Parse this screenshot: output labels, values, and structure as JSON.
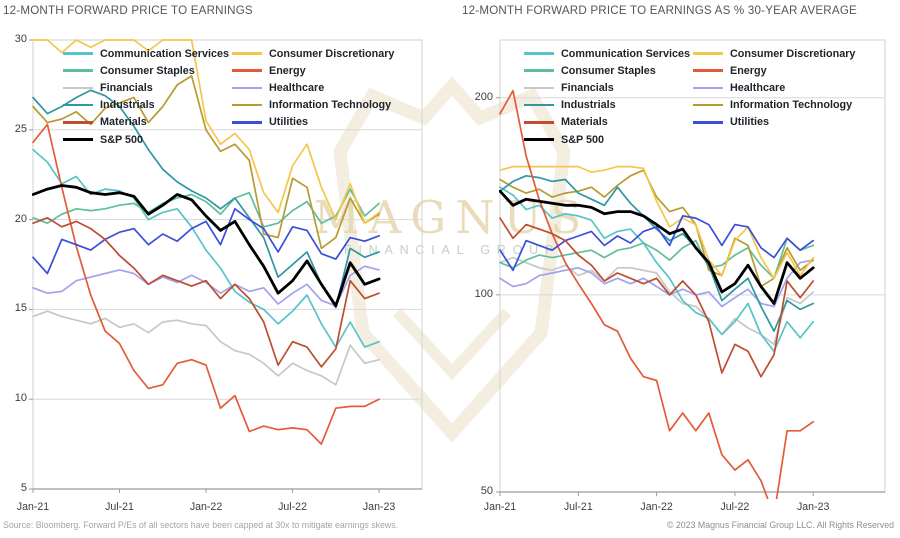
{
  "header": {
    "left_title": "12-MONTH FORWARD PRICE TO EARNINGS",
    "right_title": "12-MONTH FORWARD PRICE TO EARNINGS AS % 30-YEAR AVERAGE"
  },
  "footer": {
    "source": "Source: Bloomberg. Forward P/Es of all sectors have been capped at 30x to mitigate earnings skews.",
    "copyright": "© 2023 Magnus Financial Group LLC. All Rights Reserved"
  },
  "watermark": {
    "line1": "MAGNUS",
    "line2": "FINANCIAL GROUP",
    "shield_color": "#f4eee0",
    "text_gold": "#e5d7ae",
    "text_sage": "#c2cdbf"
  },
  "chart_data": [
    {
      "type": "line",
      "title": "12-MONTH FORWARD PRICE TO EARNINGS",
      "x_monthly_labels": [
        "Jan-21",
        "Feb-21",
        "Mar-21",
        "Apr-21",
        "May-21",
        "Jun-21",
        "Jul-21",
        "Aug-21",
        "Sep-21",
        "Oct-21",
        "Nov-21",
        "Dec-21",
        "Jan-22",
        "Feb-22",
        "Mar-22",
        "Apr-22",
        "May-22",
        "Jun-22",
        "Jul-22",
        "Aug-22",
        "Sep-22",
        "Oct-22",
        "Nov-22",
        "Dec-22",
        "Jan-23"
      ],
      "x_tick_labels": [
        "Jan-21",
        "Jul-21",
        "Jan-22",
        "Jul-22",
        "Jan-23"
      ],
      "x_tick_months": [
        0,
        6,
        12,
        18,
        24
      ],
      "y_scale": "linear",
      "ylim": [
        5,
        30
      ],
      "y_ticks": [
        "30",
        "25",
        "20",
        "15",
        "10",
        "5"
      ],
      "y_tick_values": [
        30,
        25,
        20,
        15,
        10,
        5
      ],
      "gridlines": [
        25,
        20,
        15,
        10
      ],
      "grid_on": true,
      "legend_position": "top-left-inside",
      "note": "Forward P/Es capped at 30x",
      "series": [
        {
          "name": "Communication Services",
          "color": "#56C4C8",
          "z": 3,
          "width": 1.7,
          "values": [
            23.9,
            23.2,
            22.0,
            22.4,
            21.4,
            21.7,
            21.6,
            21.2,
            20.0,
            20.4,
            20.6,
            19.6,
            18.3,
            17.3,
            16.0,
            15.4,
            15.0,
            14.2,
            14.9,
            15.8,
            14.2,
            12.9,
            14.3,
            12.9,
            13.2
          ]
        },
        {
          "name": "Consumer Discretionary",
          "color": "#F4C64A",
          "z": 6,
          "width": 1.7,
          "values": [
            30,
            30,
            29.3,
            30,
            29.6,
            30,
            30,
            30,
            29.4,
            30,
            30,
            30,
            25.5,
            24.2,
            24.8,
            23.9,
            21.5,
            20.4,
            23.0,
            24.2,
            21.8,
            20.0,
            22.0,
            19.8,
            20.4
          ]
        },
        {
          "name": "Consumer Staples",
          "color": "#5FBF99",
          "z": 4,
          "width": 1.7,
          "values": [
            20.1,
            19.8,
            20.3,
            20.6,
            20.5,
            20.6,
            20.8,
            20.9,
            20.4,
            20.9,
            21.2,
            21.4,
            21.0,
            20.3,
            21.2,
            21.5,
            19.6,
            19.8,
            20.5,
            21.0,
            19.8,
            20.2,
            21.7,
            20.2,
            20.9
          ]
        },
        {
          "name": "Energy",
          "color": "#E55A38",
          "z": 8,
          "width": 1.7,
          "values": [
            24.3,
            25.3,
            21.8,
            18.5,
            15.8,
            13.8,
            13.1,
            11.6,
            10.6,
            10.8,
            12.0,
            12.2,
            11.9,
            9.5,
            10.2,
            8.2,
            8.5,
            8.3,
            8.4,
            8.3,
            7.5,
            9.5,
            9.6,
            9.6,
            10.0
          ]
        },
        {
          "name": "Financials",
          "color": "#C7C7C7",
          "z": 1,
          "width": 1.7,
          "values": [
            14.6,
            14.9,
            14.6,
            14.4,
            14.2,
            14.5,
            14.0,
            14.2,
            13.7,
            14.3,
            14.4,
            14.2,
            14.1,
            13.2,
            12.7,
            12.5,
            12.0,
            11.3,
            12.0,
            11.6,
            11.3,
            10.8,
            13.0,
            12.0,
            12.2
          ]
        },
        {
          "name": "Healthcare",
          "color": "#A2A2EF",
          "z": 2,
          "width": 1.7,
          "values": [
            16.2,
            15.9,
            16.0,
            16.6,
            16.8,
            17.0,
            17.2,
            17.0,
            16.4,
            16.8,
            16.5,
            16.9,
            16.5,
            15.9,
            16.4,
            16.0,
            16.2,
            15.3,
            15.9,
            16.4,
            15.5,
            15.2,
            16.9,
            17.4,
            17.2
          ]
        },
        {
          "name": "Industrials",
          "color": "#2F97A1",
          "z": 7,
          "width": 1.7,
          "values": [
            26.8,
            25.9,
            26.3,
            26.8,
            27.2,
            26.9,
            26.3,
            25.2,
            23.9,
            22.8,
            22.1,
            21.6,
            21.2,
            20.6,
            21.2,
            20.1,
            19.0,
            16.8,
            17.5,
            18.2,
            16.4,
            15.1,
            18.4,
            17.9,
            18.2
          ]
        },
        {
          "name": "Information Technology",
          "color": "#B89B30",
          "z": 5,
          "width": 1.7,
          "values": [
            26.3,
            25.4,
            25.6,
            26.0,
            25.3,
            26.2,
            26.5,
            26.8,
            25.4,
            26.3,
            27.5,
            28.0,
            25.0,
            23.8,
            24.2,
            23.3,
            19.2,
            19.0,
            22.3,
            21.8,
            18.4,
            19.0,
            21.2,
            19.8,
            20.3
          ]
        },
        {
          "name": "Materials",
          "color": "#BF4C2F",
          "z": 11,
          "width": 1.7,
          "values": [
            19.8,
            20.1,
            19.6,
            19.9,
            19.5,
            18.9,
            18.0,
            17.3,
            16.4,
            16.9,
            16.6,
            16.3,
            16.6,
            15.6,
            16.4,
            15.6,
            14.3,
            11.9,
            13.2,
            12.9,
            11.8,
            12.8,
            16.6,
            15.6,
            15.9
          ]
        },
        {
          "name": "Utilities",
          "color": "#3A4EDC",
          "z": 9,
          "width": 1.7,
          "values": [
            17.9,
            17.0,
            18.9,
            18.6,
            18.3,
            18.9,
            19.3,
            19.5,
            18.6,
            19.2,
            18.8,
            19.5,
            19.9,
            18.6,
            20.6,
            20.0,
            19.5,
            18.2,
            19.6,
            19.4,
            18.1,
            17.8,
            19.0,
            18.8,
            19.1
          ]
        },
        {
          "name": "S&P 500",
          "color": "#000000",
          "z": 10,
          "width": 2.8,
          "values": [
            21.4,
            21.7,
            21.9,
            21.8,
            21.5,
            21.4,
            21.5,
            21.3,
            20.3,
            20.8,
            21.4,
            21.1,
            20.2,
            19.4,
            19.9,
            18.6,
            17.4,
            15.9,
            16.6,
            17.7,
            16.4,
            15.2,
            17.6,
            16.4,
            16.7
          ]
        }
      ]
    },
    {
      "type": "line",
      "title": "12-MONTH FORWARD PRICE TO EARNINGS AS % 30-YEAR AVERAGE",
      "x_monthly_labels": [
        "Jan-21",
        "Feb-21",
        "Mar-21",
        "Apr-21",
        "May-21",
        "Jun-21",
        "Jul-21",
        "Aug-21",
        "Sep-21",
        "Oct-21",
        "Nov-21",
        "Dec-21",
        "Jan-22",
        "Feb-22",
        "Mar-22",
        "Apr-22",
        "May-22",
        "Jun-22",
        "Jul-22",
        "Aug-22",
        "Sep-22",
        "Oct-22",
        "Nov-22",
        "Dec-22",
        "Jan-23"
      ],
      "x_tick_labels": [
        "Jan-21",
        "Jul-21",
        "Jan-22",
        "Jul-22",
        "Jan-23"
      ],
      "x_tick_months": [
        0,
        6,
        12,
        18,
        24
      ],
      "y_scale": "log",
      "ylim": [
        50,
        245
      ],
      "y_ticks": [
        "200",
        "100",
        "50"
      ],
      "y_tick_values": [
        200,
        100,
        50
      ],
      "gridlines": [
        200,
        100
      ],
      "grid_on": true,
      "legend_position": "top-left-inside",
      "series": [
        {
          "name": "Communication Services",
          "color": "#56C4C8",
          "z": 3,
          "width": 1.7,
          "values": [
            146,
            142,
            135,
            137,
            131,
            133,
            132,
            130,
            122,
            125,
            126,
            120,
            112,
            106,
            98,
            94,
            92,
            87,
            91,
            97,
            87,
            82,
            91,
            86,
            91
          ]
        },
        {
          "name": "Consumer Discretionary",
          "color": "#F4C64A",
          "z": 6,
          "width": 1.7,
          "values": [
            155,
            157,
            157,
            157,
            157,
            157,
            157,
            154,
            155,
            157,
            157,
            156,
            139,
            127,
            131,
            128,
            113,
            107,
            121,
            127,
            114,
            106,
            116,
            107,
            114
          ]
        },
        {
          "name": "Consumer Staples",
          "color": "#5FBF99",
          "z": 4,
          "width": 1.7,
          "values": [
            112,
            110,
            113,
            115,
            114,
            115,
            116,
            117,
            114,
            117,
            118,
            120,
            117,
            113,
            118,
            121,
            110,
            111,
            115,
            118,
            111,
            106,
            122,
            117,
            119
          ]
        },
        {
          "name": "Energy",
          "color": "#E55A38",
          "z": 8,
          "width": 1.7,
          "values": [
            189,
            205,
            163,
            140,
            124,
            112,
            104,
            97,
            90,
            88,
            80,
            75,
            74,
            62,
            66,
            62,
            66,
            57,
            54,
            56,
            52,
            46,
            62,
            62,
            64
          ]
        },
        {
          "name": "Financials",
          "color": "#C7C7C7",
          "z": 1,
          "width": 1.7,
          "values": [
            112,
            114,
            112,
            110,
            109,
            111,
            107,
            109,
            105,
            110,
            110,
            109,
            108,
            101,
            97,
            96,
            92,
            87,
            92,
            89,
            87,
            84,
            99,
            97,
            101
          ]
        },
        {
          "name": "Healthcare",
          "color": "#A2A2EF",
          "z": 2,
          "width": 1.7,
          "values": [
            106,
            103,
            104,
            107,
            108,
            109,
            110,
            108,
            104,
            106,
            104,
            106,
            103,
            100,
            102,
            100,
            101,
            96,
            99,
            102,
            97,
            96,
            106,
            112,
            113
          ]
        },
        {
          "name": "Industrials",
          "color": "#2F97A1",
          "z": 7,
          "width": 1.7,
          "values": [
            144,
            149,
            152,
            151,
            149,
            150,
            143,
            140,
            137,
            146,
            138,
            132,
            126,
            121,
            124,
            118,
            111,
            98,
            102,
            106,
            96,
            88,
            98,
            95,
            97
          ]
        },
        {
          "name": "Information Technology",
          "color": "#B89B30",
          "z": 5,
          "width": 1.7,
          "values": [
            150,
            146,
            143,
            145,
            141,
            143,
            144,
            146,
            141,
            147,
            152,
            155,
            141,
            134,
            136,
            128,
            109,
            107,
            122,
            119,
            103,
            106,
            118,
            109,
            113
          ]
        },
        {
          "name": "Materials",
          "color": "#BF4C2F",
          "z": 11,
          "width": 1.7,
          "values": [
            131,
            122,
            128,
            126,
            124,
            121,
            115,
            111,
            105,
            108,
            106,
            104,
            106,
            100,
            105,
            100,
            91,
            76,
            84,
            82,
            75,
            81,
            105,
            99,
            105
          ]
        },
        {
          "name": "Utilities",
          "color": "#3A4EDC",
          "z": 9,
          "width": 1.7,
          "values": [
            117,
            109,
            121,
            119,
            117,
            121,
            123,
            125,
            119,
            123,
            120,
            125,
            127,
            119,
            132,
            131,
            128,
            119,
            128,
            127,
            118,
            114,
            122,
            117,
            121
          ]
        },
        {
          "name": "S&P 500",
          "color": "#000000",
          "z": 10,
          "width": 2.8,
          "values": [
            144,
            137,
            140,
            139,
            138,
            137,
            137,
            136,
            133,
            134,
            134,
            132,
            128,
            124,
            126,
            118,
            112,
            101,
            104,
            111,
            103,
            97,
            112,
            106,
            110
          ]
        }
      ]
    }
  ]
}
